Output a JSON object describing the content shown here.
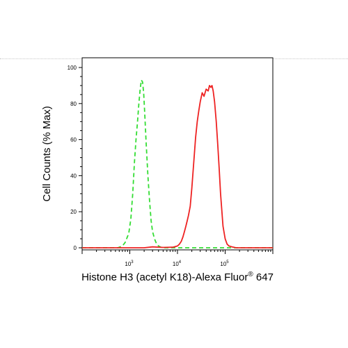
{
  "chart_data": {
    "type": "line",
    "title": "",
    "xlabel": "Histone H3 (acetyl K18)-Alexa Fluor",
    "xlabel_sup": "®",
    "xlabel_suffix": " 647",
    "ylabel": "Cell Counts (% Max)",
    "x_scale": "log",
    "xlim": [
      100,
      1000000
    ],
    "ylim": [
      0,
      100
    ],
    "y_ticks": [
      0,
      20,
      40,
      60,
      80,
      100
    ],
    "x_ticks": [
      {
        "value": 1000,
        "base": "10",
        "exp": "3"
      },
      {
        "value": 10000,
        "base": "10",
        "exp": "4"
      },
      {
        "value": 100000,
        "base": "10",
        "exp": "5"
      }
    ],
    "grid": false,
    "legend": "none",
    "series": [
      {
        "style": "dashed",
        "color": "#33dd33",
        "x": [
          100,
          560,
          700,
          800,
          950,
          1050,
          1150,
          1250,
          1350,
          1450,
          1550,
          1650,
          1750,
          1850,
          1950,
          2050,
          2200,
          2400,
          2600,
          2800,
          3000,
          3300,
          3600,
          4000,
          4500,
          5000,
          6000,
          8000,
          1000000
        ],
        "y": [
          0,
          0,
          1,
          3,
          8,
          16,
          30,
          47,
          60,
          70,
          80,
          88,
          93,
          92,
          86,
          75,
          58,
          40,
          26,
          15,
          9,
          5,
          2.5,
          1,
          0.3,
          0,
          0,
          0,
          0
        ]
      },
      {
        "style": "solid",
        "color": "#ee2222",
        "x": [
          100,
          800,
          1000,
          2000,
          3000,
          5000,
          8000,
          10000,
          11000,
          12000,
          13000,
          14000,
          15000,
          16000,
          17000,
          18500,
          20000,
          22000,
          24000,
          26000,
          28000,
          30000,
          33000,
          36000,
          40000,
          44000,
          47000,
          50000,
          53000,
          56000,
          60000,
          65000,
          70000,
          75000,
          80000,
          90000,
          100000,
          110000,
          120000,
          140000,
          170000,
          1000000
        ],
        "y": [
          0,
          0,
          0,
          0,
          0.5,
          0.2,
          0.3,
          1,
          2,
          3.5,
          6,
          9,
          12,
          15,
          18,
          23,
          33,
          48,
          61,
          70,
          76,
          81,
          86,
          84,
          88,
          87,
          90,
          89,
          90,
          87,
          81,
          70,
          57,
          44,
          30,
          12,
          5,
          2,
          1,
          0.5,
          0,
          0
        ]
      }
    ]
  }
}
